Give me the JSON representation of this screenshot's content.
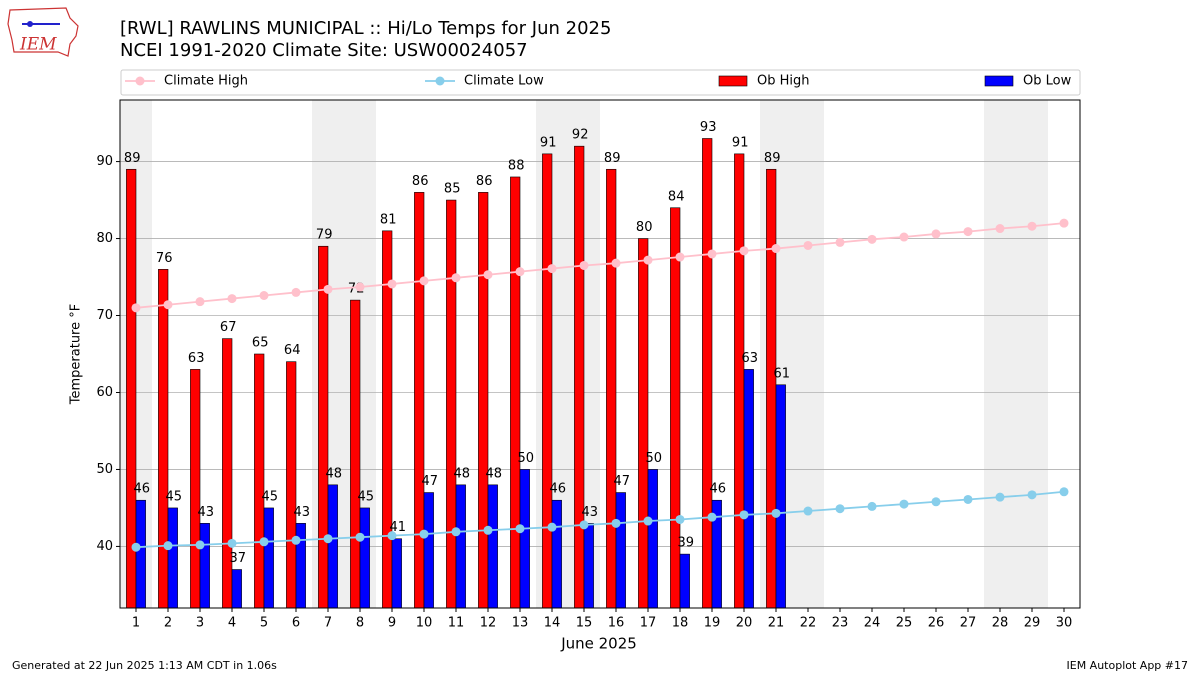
{
  "logo_text": "IEM",
  "chart_data": {
    "type": "bar",
    "title": "[RWL] RAWLINS MUNICIPAL :: Hi/Lo Temps for Jun 2025",
    "subtitle": "NCEI 1991-2020 Climate Site: USW00024057",
    "x_label": "June 2025",
    "y_label": "Temperature °F",
    "x": [
      1,
      2,
      3,
      4,
      5,
      6,
      7,
      8,
      9,
      10,
      11,
      12,
      13,
      14,
      15,
      16,
      17,
      18,
      19,
      20,
      21,
      22,
      23,
      24,
      25,
      26,
      27,
      28,
      29,
      30
    ],
    "xlim": [
      0.5,
      30.5
    ],
    "xticks": [
      1,
      2,
      3,
      4,
      5,
      6,
      7,
      8,
      9,
      10,
      11,
      12,
      13,
      14,
      15,
      16,
      17,
      18,
      19,
      20,
      21,
      22,
      23,
      24,
      25,
      26,
      27,
      28,
      29,
      30
    ],
    "ylim": [
      32,
      98
    ],
    "yticks": [
      40,
      50,
      60,
      70,
      80,
      90
    ],
    "grid": true,
    "shaded_ranges": [
      [
        0.5,
        1.5
      ],
      [
        6.5,
        8.5
      ],
      [
        13.5,
        15.5
      ],
      [
        20.5,
        22.5
      ],
      [
        27.5,
        29.5
      ]
    ],
    "series": [
      {
        "name": "Climate High",
        "type": "line",
        "color": "#ffc0cb",
        "values": [
          71.0,
          71.4,
          71.8,
          72.2,
          72.6,
          73.0,
          73.4,
          73.7,
          74.1,
          74.5,
          74.9,
          75.3,
          75.7,
          76.1,
          76.5,
          76.8,
          77.2,
          77.6,
          78.0,
          78.4,
          78.7,
          79.1,
          79.5,
          79.9,
          80.2,
          80.6,
          80.9,
          81.3,
          81.6,
          82.0
        ]
      },
      {
        "name": "Climate Low",
        "type": "line",
        "color": "#87ceeb",
        "values": [
          39.9,
          40.1,
          40.2,
          40.4,
          40.6,
          40.8,
          41.0,
          41.2,
          41.4,
          41.6,
          41.9,
          42.1,
          42.3,
          42.5,
          42.8,
          43.0,
          43.3,
          43.5,
          43.8,
          44.1,
          44.3,
          44.6,
          44.9,
          45.2,
          45.5,
          45.8,
          46.1,
          46.4,
          46.7,
          47.1
        ]
      },
      {
        "name": "Ob High",
        "type": "bar",
        "color": "#ff0000",
        "values": [
          89,
          76,
          63,
          67,
          65,
          64,
          79,
          72,
          81,
          86,
          85,
          86,
          88,
          91,
          92,
          89,
          80,
          84,
          93,
          91,
          89,
          null,
          null,
          null,
          null,
          null,
          null,
          null,
          null,
          null
        ]
      },
      {
        "name": "Ob Low",
        "type": "bar",
        "color": "#0000ff",
        "values": [
          46,
          45,
          43,
          37,
          45,
          43,
          48,
          45,
          41,
          47,
          48,
          48,
          50,
          46,
          43,
          47,
          50,
          39,
          46,
          63,
          61,
          null,
          null,
          null,
          null,
          null,
          null,
          null,
          null,
          null
        ]
      }
    ],
    "footer_left": "Generated at 22 Jun 2025 1:13 AM CDT in 1.06s",
    "footer_right": "IEM Autoplot App #17"
  }
}
